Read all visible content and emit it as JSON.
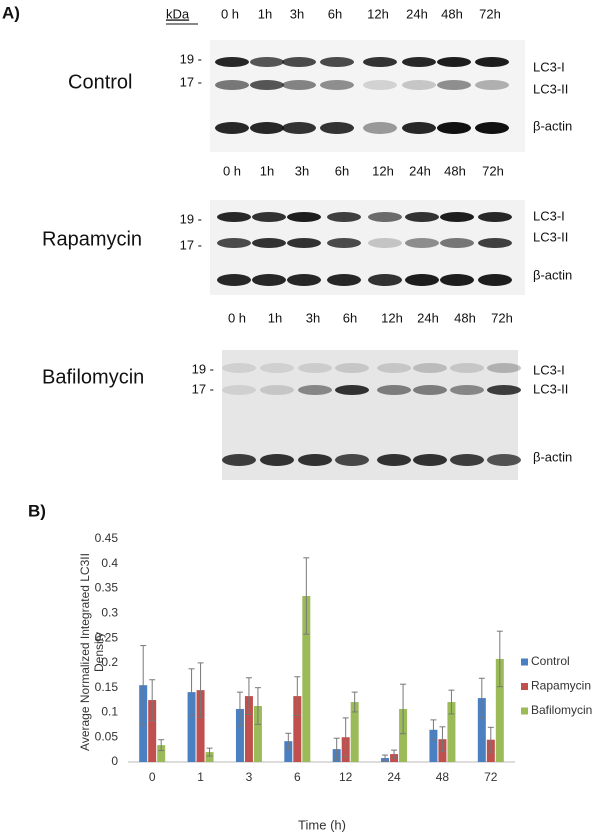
{
  "panel_a": {
    "label": "A)",
    "kda_label": "kDa",
    "blots": [
      {
        "name": "Control",
        "lanes": [
          "0 h",
          "1h",
          "3h",
          "6h",
          "12h",
          "24h",
          "48h",
          "72h"
        ],
        "markers": [
          "19 -",
          "17 -"
        ],
        "bands": [
          "LC3-I",
          "LC3-II",
          "β-actin"
        ]
      },
      {
        "name": "Rapamycin",
        "lanes": [
          "0 h",
          "1h",
          "3h",
          "6h",
          "12h",
          "24h",
          "48h",
          "72h"
        ],
        "markers": [
          "19 -",
          "17 -"
        ],
        "bands": [
          "LC3-I",
          "LC3-II",
          "β-actin"
        ]
      },
      {
        "name": "Bafilomycin",
        "lanes": [
          "0 h",
          "1h",
          "3h",
          "6h",
          "12h",
          "24h",
          "48h",
          "72h"
        ],
        "markers": [
          "19 -",
          "17 -"
        ],
        "bands": [
          "LC3-I",
          "LC3-II",
          "β-actin"
        ]
      }
    ]
  },
  "chart_data": {
    "type": "bar",
    "panel_label": "B)",
    "x_label": "Time (h)",
    "y_label": "Average Normalized Integrated LC3II Density",
    "categories": [
      "0",
      "1",
      "3",
      "6",
      "12",
      "24",
      "48",
      "72"
    ],
    "series": [
      {
        "name": "Control",
        "color": "#4a7fc1",
        "values": [
          0.155,
          0.141,
          0.107,
          0.042,
          0.026,
          0.008,
          0.065,
          0.129
        ],
        "errors": [
          0.08,
          0.047,
          0.034,
          0.016,
          0.022,
          0.006,
          0.02,
          0.04
        ]
      },
      {
        "name": "Rapamycin",
        "color": "#c0504d",
        "values": [
          0.125,
          0.145,
          0.133,
          0.133,
          0.05,
          0.016,
          0.046,
          0.045
        ],
        "errors": [
          0.041,
          0.055,
          0.037,
          0.039,
          0.039,
          0.008,
          0.025,
          0.025
        ]
      },
      {
        "name": "Bafilomycin",
        "color": "#9bbb59",
        "values": [
          0.034,
          0.02,
          0.113,
          0.335,
          0.121,
          0.107,
          0.121,
          0.208
        ],
        "errors": [
          0.011,
          0.008,
          0.037,
          0.077,
          0.02,
          0.05,
          0.024,
          0.056
        ]
      }
    ],
    "ylim": [
      0,
      0.45
    ],
    "yticks": [
      0,
      0.05,
      0.1,
      0.15,
      0.2,
      0.25,
      0.3,
      0.35,
      0.4,
      0.45
    ],
    "grid": false,
    "legend": "right"
  }
}
